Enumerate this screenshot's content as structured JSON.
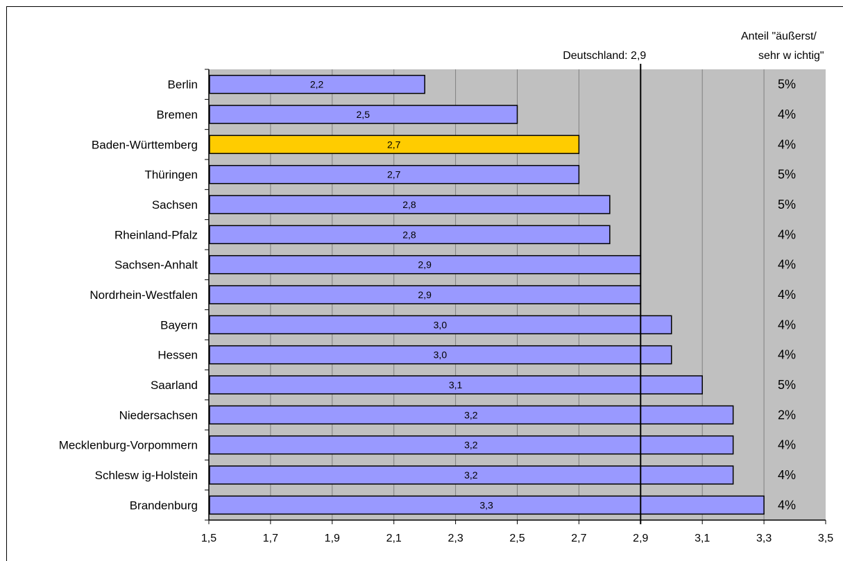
{
  "chart_data": {
    "type": "bar",
    "orientation": "horizontal",
    "categories": [
      "Berlin",
      "Bremen",
      "Baden-Württemberg",
      "Thüringen",
      "Sachsen",
      "Rheinland-Pfalz",
      "Sachsen-Anhalt",
      "Nordrhein-Westfalen",
      "Bayern",
      "Hessen",
      "Saarland",
      "Niedersachsen",
      "Mecklenburg-Vorpommern",
      "Schlesw ig-Holstein",
      "Brandenburg"
    ],
    "values": [
      2.2,
      2.5,
      2.7,
      2.7,
      2.8,
      2.8,
      2.9,
      2.9,
      3.0,
      3.0,
      3.1,
      3.2,
      3.2,
      3.2,
      3.3
    ],
    "value_labels": [
      "2,2",
      "2,5",
      "2,7",
      "2,7",
      "2,8",
      "2,8",
      "2,9",
      "2,9",
      "3,0",
      "3,0",
      "3,1",
      "3,2",
      "3,2",
      "3,2",
      "3,3"
    ],
    "highlight": "Baden-Württemberg",
    "xlim": [
      1.5,
      3.5
    ],
    "x_ticks": [
      1.5,
      1.7,
      1.9,
      2.1,
      2.3,
      2.5,
      2.7,
      2.9,
      3.1,
      3.3,
      3.5
    ],
    "x_tick_labels": [
      "1,5",
      "1,7",
      "1,9",
      "2,1",
      "2,3",
      "2,5",
      "2,7",
      "2,9",
      "3,1",
      "3,3",
      "3,5"
    ],
    "reference_line": {
      "value": 2.9,
      "label": "Deutschland: 2,9"
    },
    "share_column": {
      "header_line1": "Anteil \"äußerst/",
      "header_line2": "sehr w ichtig\"",
      "values": [
        "5%",
        "4%",
        "4%",
        "5%",
        "5%",
        "4%",
        "4%",
        "4%",
        "4%",
        "4%",
        "5%",
        "2%",
        "4%",
        "4%",
        "4%"
      ]
    },
    "grid": true,
    "colors": {
      "bar": "#9999FF",
      "highlight": "#FFCC00",
      "plot_bg": "#C0C0C0",
      "gridline": "#808080"
    }
  }
}
